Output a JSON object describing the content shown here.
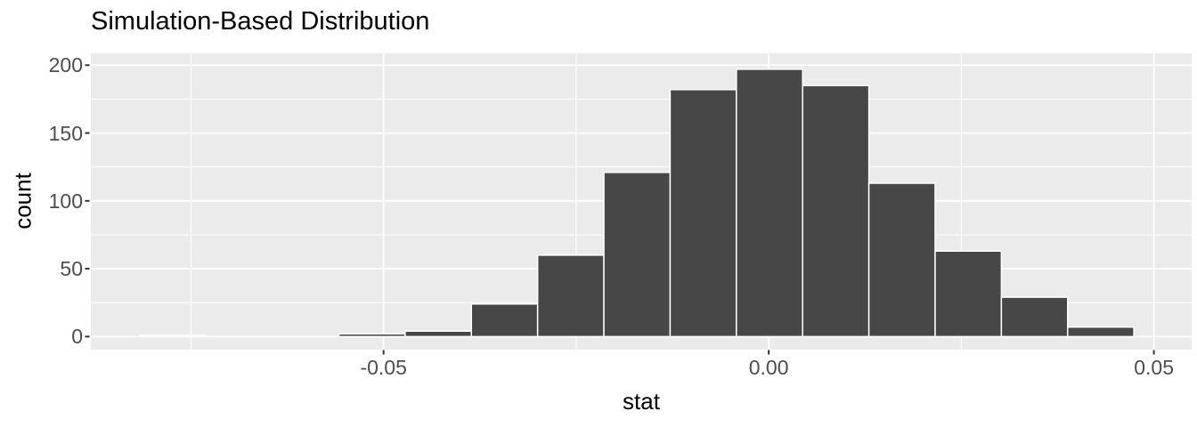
{
  "chart_data": {
    "type": "bar",
    "subtype": "histogram",
    "title": "Simulation-Based Distribution",
    "xlabel": "stat",
    "ylabel": "count",
    "grid": true,
    "legend_position": "none",
    "xlim": [
      -0.088,
      0.0549
    ],
    "ylim": [
      -9.6,
      208.7
    ],
    "x_ticks": [
      -0.05,
      0.0,
      0.05
    ],
    "x_tick_labels": [
      "-0.05",
      "0.00",
      "0.05"
    ],
    "x_minor_ticks": [
      -0.075,
      -0.025,
      0.025
    ],
    "y_ticks": [
      0,
      50,
      100,
      150,
      200
    ],
    "y_tick_labels": [
      "0",
      "50",
      "100",
      "150",
      "200"
    ],
    "y_minor_ticks": [
      25,
      75,
      125,
      175
    ],
    "binwidth": 0.0086,
    "bins": [
      {
        "center": -0.0773,
        "count": 1
      },
      {
        "center": -0.0687,
        "count": 0
      },
      {
        "center": -0.0601,
        "count": 0
      },
      {
        "center": -0.0515,
        "count": 2
      },
      {
        "center": -0.0429,
        "count": 4
      },
      {
        "center": -0.0343,
        "count": 24
      },
      {
        "center": -0.0257,
        "count": 60
      },
      {
        "center": -0.0171,
        "count": 121
      },
      {
        "center": -0.0085,
        "count": 182
      },
      {
        "center": 0.0001,
        "count": 197
      },
      {
        "center": 0.0087,
        "count": 185
      },
      {
        "center": 0.0173,
        "count": 113
      },
      {
        "center": 0.0259,
        "count": 63
      },
      {
        "center": 0.0345,
        "count": 29
      },
      {
        "center": 0.0431,
        "count": 7
      }
    ],
    "colors": {
      "panel_background": "#EBEBEB",
      "gridline": "#FFFFFF",
      "bar_fill": "#474747",
      "bar_stroke": "#FFFFFF",
      "tick_mark": "#333333",
      "tick_label": "#4D4D4D",
      "title_text": "#000000"
    }
  }
}
